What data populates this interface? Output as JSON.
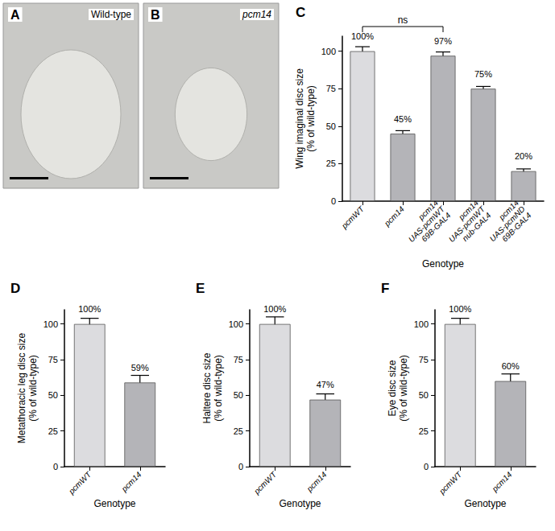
{
  "images": [
    {
      "panel": "A",
      "label": "Wild-type"
    },
    {
      "panel": "B",
      "label": "pcm14"
    }
  ],
  "chart_data": [
    {
      "type": "bar",
      "title": "C",
      "x_label": "Genotype",
      "y_label": "Wing imaginal disc size\n(% of wild-type)",
      "categories": [
        "pcmWT",
        "pcm14",
        "pcm14\nUAS-pcmWT\n69B-GAL4",
        "pcm14\nUAS-pcmWT\nnub-GAL4",
        "pcm14\nUAS-pcmND\n69B-GAL4"
      ],
      "values": [
        100,
        45,
        97,
        75,
        20
      ],
      "errors": [
        3,
        2,
        2.5,
        1.5,
        1.5
      ],
      "value_labels": [
        "100%",
        "45%",
        "97%",
        "75%",
        "20%"
      ],
      "colors": [
        "#dcdcdf",
        "#b4b4b8",
        "#b4b4b8",
        "#b4b4b8",
        "#b4b4b8"
      ],
      "ylim": [
        0,
        110
      ],
      "yticks": [
        0,
        25,
        50,
        75,
        100
      ],
      "grid": false,
      "data_labels": true,
      "annotations": [
        {
          "text": "ns",
          "from": "pcmWT",
          "to": "pcm14\nUAS-pcmWT\n69B-GAL4"
        }
      ]
    },
    {
      "type": "bar",
      "title": "D",
      "x_label": "Genotype",
      "y_label": "Metathoracic leg disc size\n(% of wild-type)",
      "categories": [
        "pcmWT",
        "pcm14"
      ],
      "values": [
        100,
        59
      ],
      "errors": [
        4,
        5
      ],
      "value_labels": [
        "100%",
        "59%"
      ],
      "colors": [
        "#dcdcdf",
        "#b4b4b8"
      ],
      "ylim": [
        0,
        110
      ],
      "yticks": [
        0,
        25,
        50,
        75,
        100
      ],
      "grid": false,
      "data_labels": true
    },
    {
      "type": "bar",
      "title": "E",
      "x_label": "Genotype",
      "y_label": "Haltere disc size\n(% of wild-type)",
      "categories": [
        "pcmWT",
        "pcm14"
      ],
      "values": [
        100,
        47
      ],
      "errors": [
        5,
        4
      ],
      "value_labels": [
        "100%",
        "47%"
      ],
      "colors": [
        "#dcdcdf",
        "#b4b4b8"
      ],
      "ylim": [
        0,
        110
      ],
      "yticks": [
        0,
        25,
        50,
        75,
        100
      ],
      "grid": false,
      "data_labels": true
    },
    {
      "type": "bar",
      "title": "F",
      "x_label": "Genotype",
      "y_label": "Eye disc size\n(% of wild-type)",
      "categories": [
        "pcmWT",
        "pcm14"
      ],
      "values": [
        100,
        60
      ],
      "errors": [
        4,
        5
      ],
      "value_labels": [
        "100%",
        "60%"
      ],
      "colors": [
        "#dcdcdf",
        "#b4b4b8"
      ],
      "ylim": [
        0,
        110
      ],
      "yticks": [
        0,
        25,
        50,
        75,
        100
      ],
      "grid": false,
      "data_labels": true
    }
  ]
}
